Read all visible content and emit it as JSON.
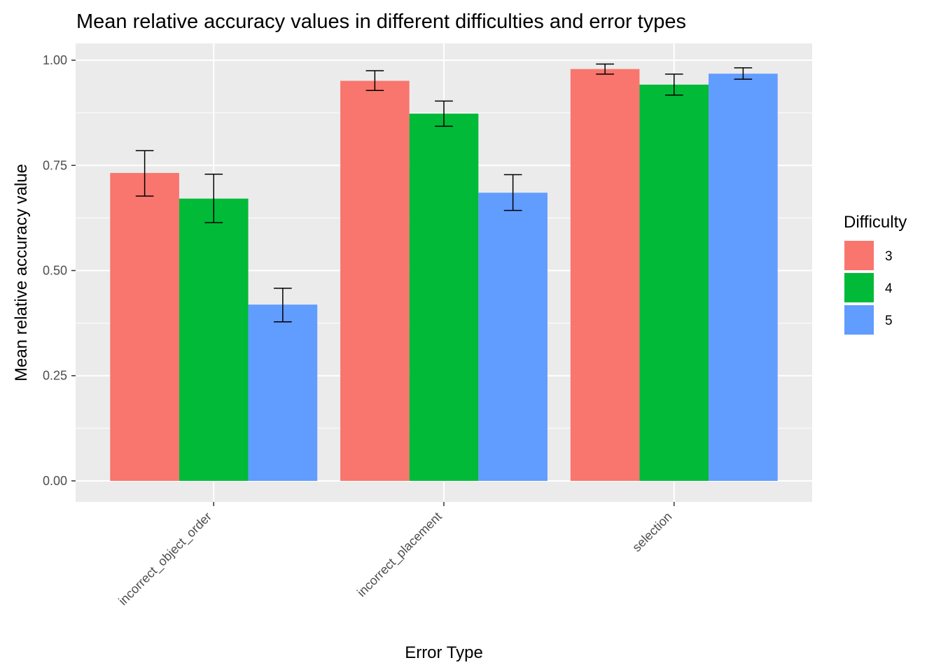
{
  "chart_data": {
    "type": "bar",
    "title": "Mean relative accuracy values in different difficulties and error types",
    "xlabel": "Error Type",
    "ylabel": "Mean relative accuracy value",
    "categories": [
      "incorrect_object_order",
      "incorrect_placement",
      "selection"
    ],
    "ylim": [
      -0.05,
      1.04
    ],
    "yticks": [
      0.0,
      0.25,
      0.5,
      0.75,
      1.0
    ],
    "ytick_labels": [
      "0.00",
      "0.25",
      "0.50",
      "0.75",
      "1.00"
    ],
    "grid": true,
    "legend": {
      "title": "Difficulty",
      "position": "right"
    },
    "series": [
      {
        "name": "3",
        "color": "#F8766D",
        "values": [
          0.732,
          0.951,
          0.979
        ],
        "error_low": [
          0.677,
          0.928,
          0.967
        ],
        "error_high": [
          0.785,
          0.975,
          0.991
        ]
      },
      {
        "name": "4",
        "color": "#00BA38",
        "values": [
          0.671,
          0.873,
          0.942
        ],
        "error_low": [
          0.614,
          0.843,
          0.917
        ],
        "error_high": [
          0.729,
          0.903,
          0.967
        ]
      },
      {
        "name": "5",
        "color": "#619CFF",
        "values": [
          0.419,
          0.685,
          0.968
        ],
        "error_low": [
          0.378,
          0.643,
          0.955
        ],
        "error_high": [
          0.458,
          0.728,
          0.982
        ]
      }
    ]
  }
}
